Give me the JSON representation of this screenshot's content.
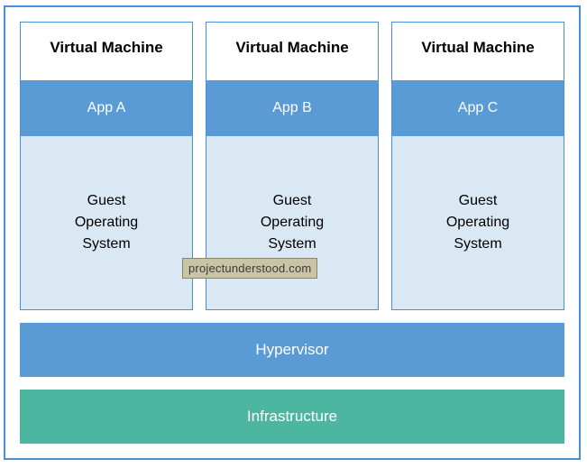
{
  "colors": {
    "frame_border": "#4a90d9",
    "vm_border": "#4a90d9",
    "vm_title_bg": "#ffffff",
    "vm_app_bg": "#5b9bd5",
    "vm_os_bg": "#dae8f4",
    "hypervisor_bg": "#5b9bd5",
    "infrastructure_bg": "#4db6a0",
    "watermark_bg": "#c9c3a8",
    "watermark_border": "#8a8568",
    "watermark_text": "#3a3a3a"
  },
  "vms": [
    {
      "title": "Virtual Machine",
      "app": "App A",
      "os": "Guest\nOperating\nSystem"
    },
    {
      "title": "Virtual Machine",
      "app": "App B",
      "os": "Guest\nOperating\nSystem"
    },
    {
      "title": "Virtual Machine",
      "app": "App C",
      "os": "Guest\nOperating\nSystem"
    }
  ],
  "hypervisor": "Hypervisor",
  "infrastructure": "Infrastructure",
  "watermark": "projectunderstood.com"
}
